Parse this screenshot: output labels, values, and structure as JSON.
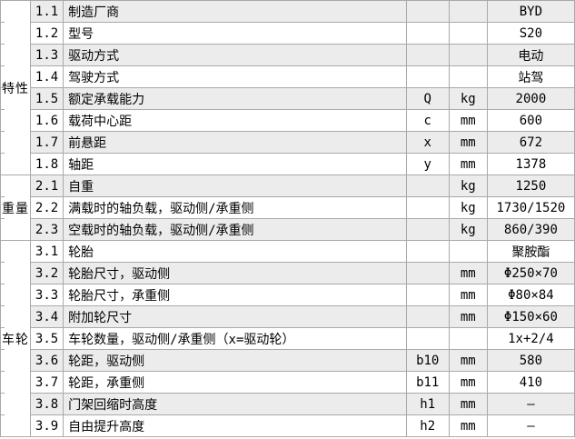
{
  "table": {
    "colors": {
      "stripe": "#ececec",
      "inner_border": "#a9a9a9",
      "outer_border": "#8e8e8e",
      "background": "#ffffff",
      "text": "#000000"
    },
    "groups": [
      {
        "label": "特性",
        "rows": 8
      },
      {
        "label": "重量",
        "rows": 3
      },
      {
        "label": "车轮",
        "rows": 9
      }
    ],
    "rows": [
      {
        "no": "1.1",
        "desc": "制造厂商",
        "sym": "",
        "unit": "",
        "val": "BYD"
      },
      {
        "no": "1.2",
        "desc": "型号",
        "sym": "",
        "unit": "",
        "val": "S20"
      },
      {
        "no": "1.3",
        "desc": "驱动方式",
        "sym": "",
        "unit": "",
        "val": "电动"
      },
      {
        "no": "1.4",
        "desc": "驾驶方式",
        "sym": "",
        "unit": "",
        "val": "站驾"
      },
      {
        "no": "1.5",
        "desc": "额定承载能力",
        "sym": "Q",
        "unit": "kg",
        "val": "2000"
      },
      {
        "no": "1.6",
        "desc": "载荷中心距",
        "sym": "c",
        "unit": "mm",
        "val": "600"
      },
      {
        "no": "1.7",
        "desc": "前悬距",
        "sym": "x",
        "unit": "mm",
        "val": "672"
      },
      {
        "no": "1.8",
        "desc": "轴距",
        "sym": "y",
        "unit": "mm",
        "val": "1378"
      },
      {
        "no": "2.1",
        "desc": "自重",
        "sym": "",
        "unit": "kg",
        "val": "1250"
      },
      {
        "no": "2.2",
        "desc": "满载时的轴负载，驱动侧/承重侧",
        "sym": "",
        "unit": "kg",
        "val": "1730/1520"
      },
      {
        "no": "2.3",
        "desc": "空载时的轴负载，驱动侧/承重侧",
        "sym": "",
        "unit": "kg",
        "val": "860/390"
      },
      {
        "no": "3.1",
        "desc": "轮胎",
        "sym": "",
        "unit": "",
        "val": "聚胺酯"
      },
      {
        "no": "3.2",
        "desc": "轮胎尺寸，驱动侧",
        "sym": "",
        "unit": "mm",
        "val": "Φ250×70"
      },
      {
        "no": "3.3",
        "desc": "轮胎尺寸，承重侧",
        "sym": "",
        "unit": "mm",
        "val": "Φ80×84"
      },
      {
        "no": "3.4",
        "desc": "附加轮尺寸",
        "sym": "",
        "unit": "mm",
        "val": "Φ150×60"
      },
      {
        "no": "3.5",
        "desc": "车轮数量，驱动侧/承重侧（x=驱动轮）",
        "sym": "",
        "unit": "",
        "val": "1x+2/4"
      },
      {
        "no": "3.6",
        "desc": "轮距，驱动侧",
        "sym": "b10",
        "unit": "mm",
        "val": "580"
      },
      {
        "no": "3.7",
        "desc": "轮距，承重侧",
        "sym": "b11",
        "unit": "mm",
        "val": "410"
      },
      {
        "no": "3.8",
        "desc": "门架回缩时高度",
        "sym": "h1",
        "unit": "mm",
        "val": "–"
      },
      {
        "no": "3.9",
        "desc": "自由提升高度",
        "sym": "h2",
        "unit": "mm",
        "val": "–"
      }
    ]
  }
}
